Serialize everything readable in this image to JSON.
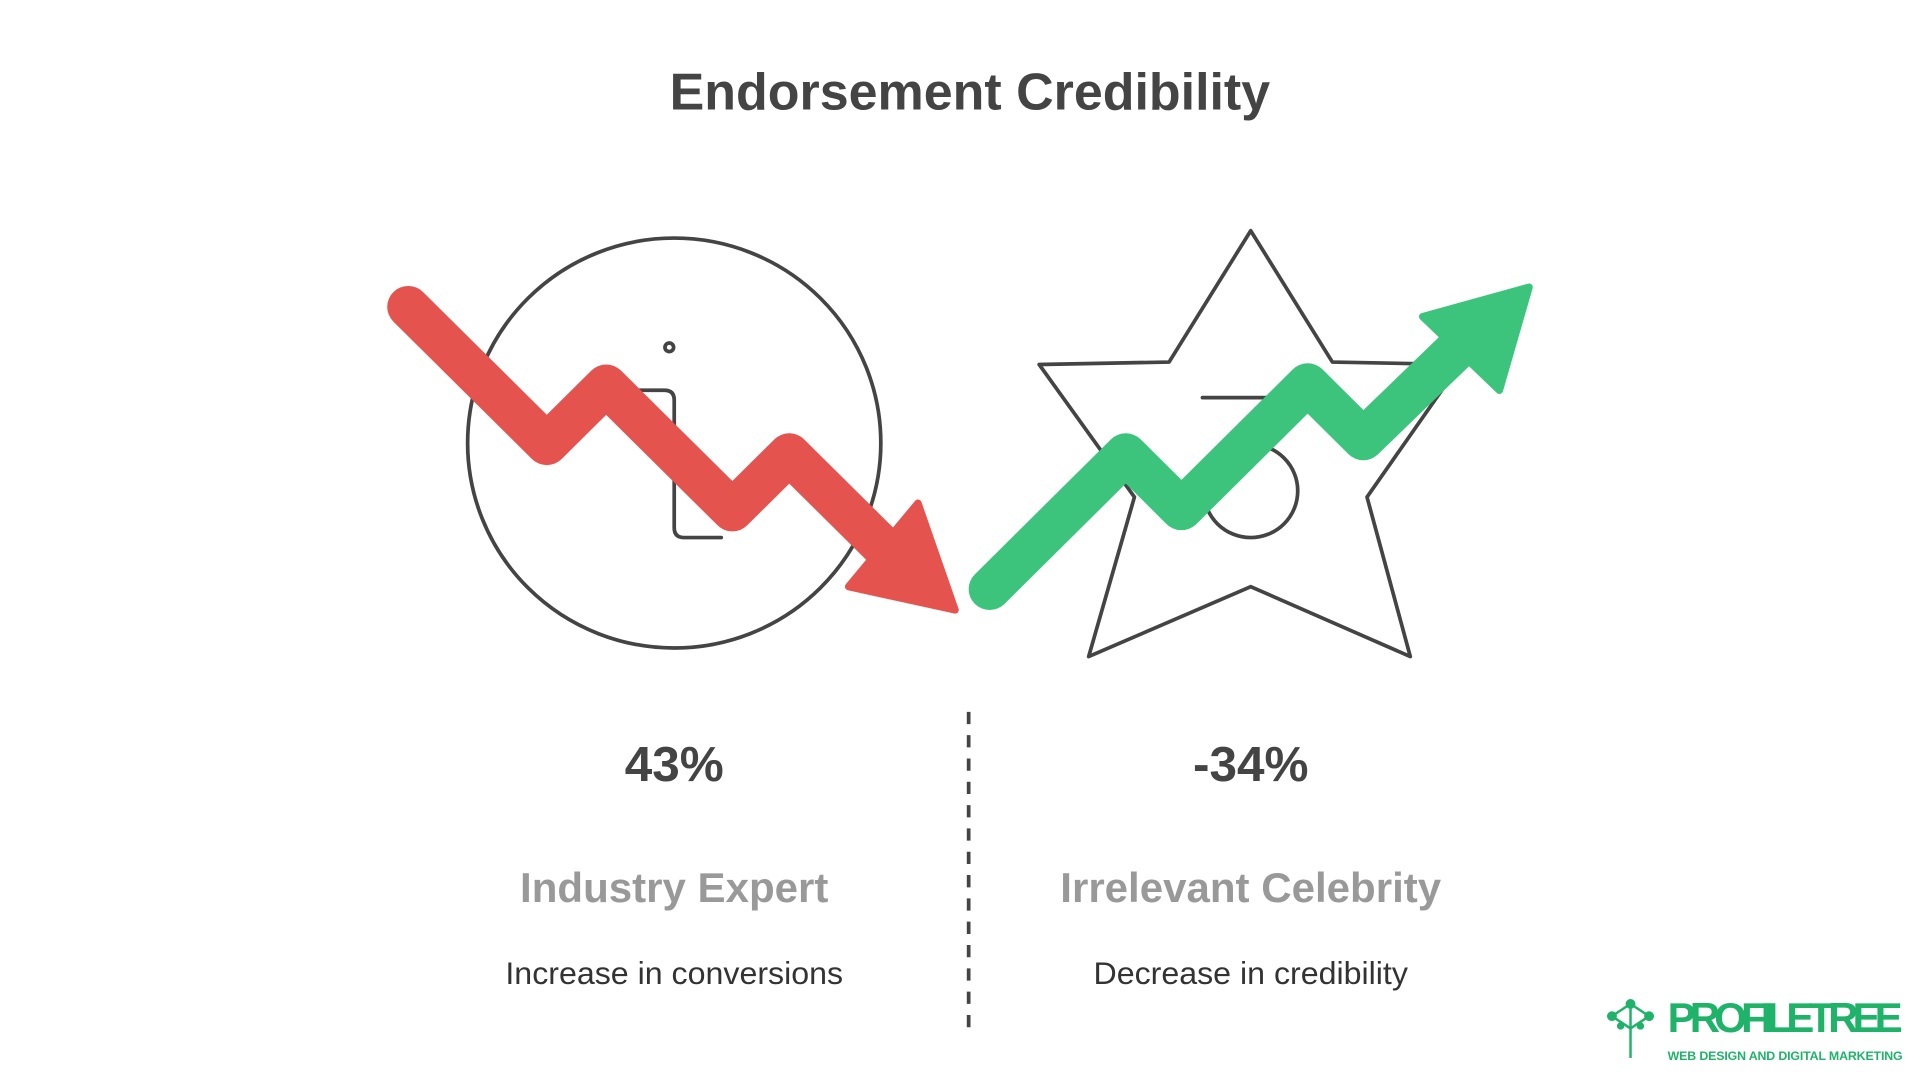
{
  "title": "Endorsement Credibility",
  "items": [
    {
      "value": "43%",
      "label": "Industry Expert",
      "description": "Increase in conversions"
    },
    {
      "value": "-34%",
      "label": "Irrelevant Celebrity",
      "description": "Decrease in credibility"
    }
  ],
  "logo": {
    "name": "PROFILETREE",
    "tagline": "WEB DESIGN AND DIGITAL MARKETING"
  }
}
